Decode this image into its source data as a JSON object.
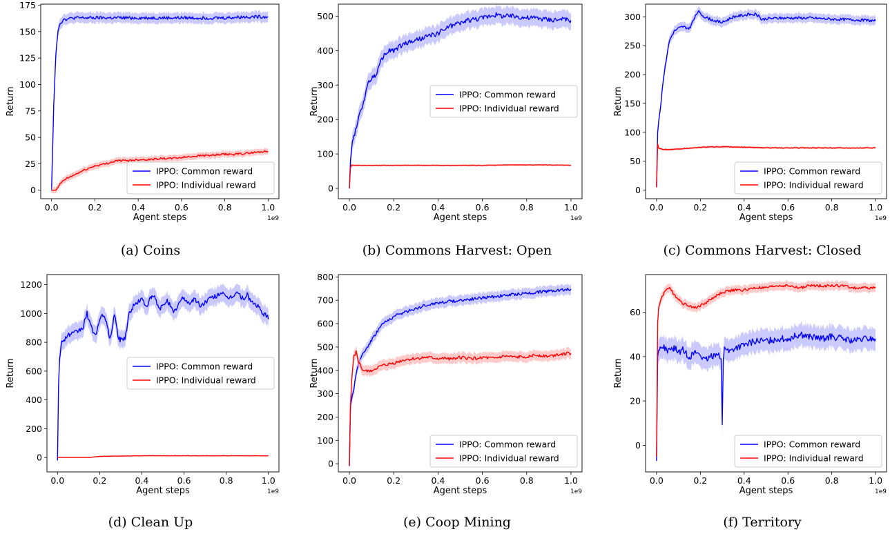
{
  "chart_data": [
    {
      "type": "line",
      "caption": "(a) Coins",
      "xlabel": "Agent steps",
      "ylabel": "Return",
      "x_offset_label": "1e9",
      "xlim": [
        -0.05,
        1.05
      ],
      "ylim": [
        -8,
        176
      ],
      "xticks": [
        0.0,
        0.2,
        0.4,
        0.6,
        0.8,
        1.0
      ],
      "xtick_labels": [
        "0.0",
        "0.2",
        "0.4",
        "0.6",
        "0.8",
        "1.0"
      ],
      "yticks": [
        0,
        25,
        50,
        75,
        100,
        125,
        150,
        175
      ],
      "ytick_labels": [
        "0",
        "25",
        "50",
        "75",
        "100",
        "125",
        "150",
        "175"
      ],
      "legend_loc": "lower-right",
      "series": [
        {
          "name": "IPPO: Common reward",
          "color": "#0000ff",
          "band_color": "#b3b3ff",
          "x": [
            0.0,
            0.01,
            0.02,
            0.03,
            0.04,
            0.05,
            0.06,
            0.08,
            0.1,
            0.2,
            0.3,
            0.4,
            0.5,
            0.6,
            0.7,
            0.8,
            0.9,
            1.0
          ],
          "y": [
            0,
            80,
            130,
            152,
            158,
            160,
            162,
            162,
            163,
            163,
            163,
            163,
            163,
            163,
            163,
            163,
            164,
            164
          ],
          "band": 5
        },
        {
          "name": "IPPO: Individual reward",
          "color": "#ff0000",
          "band_color": "#ffb3b3",
          "x": [
            0.0,
            0.02,
            0.04,
            0.06,
            0.1,
            0.15,
            0.2,
            0.25,
            0.3,
            0.35,
            0.4,
            0.45,
            0.5,
            0.55,
            0.6,
            0.65,
            0.7,
            0.75,
            0.8,
            0.85,
            0.9,
            0.95,
            1.0
          ],
          "y": [
            0,
            0,
            6,
            10,
            14,
            19,
            23,
            25,
            28,
            28,
            29,
            29,
            30,
            30,
            31,
            32,
            33,
            33,
            34,
            34,
            35,
            36,
            37
          ],
          "band": 3
        }
      ]
    },
    {
      "type": "line",
      "caption": "(b) Commons Harvest: Open",
      "xlabel": "Agent steps",
      "ylabel": "Return",
      "x_offset_label": "1e9",
      "xlim": [
        -0.05,
        1.05
      ],
      "ylim": [
        -30,
        535
      ],
      "xticks": [
        0.0,
        0.2,
        0.4,
        0.6,
        0.8,
        1.0
      ],
      "xtick_labels": [
        "0.0",
        "0.2",
        "0.4",
        "0.6",
        "0.8",
        "1.0"
      ],
      "yticks": [
        0,
        100,
        200,
        300,
        400,
        500
      ],
      "ytick_labels": [
        "0",
        "100",
        "200",
        "300",
        "400",
        "500"
      ],
      "legend_loc": "center-right",
      "series": [
        {
          "name": "IPPO: Common reward",
          "color": "#0000ff",
          "band_color": "#b3b3ff",
          "x": [
            0.0,
            0.005,
            0.01,
            0.02,
            0.04,
            0.06,
            0.08,
            0.1,
            0.12,
            0.15,
            0.18,
            0.2,
            0.25,
            0.3,
            0.35,
            0.4,
            0.45,
            0.5,
            0.55,
            0.6,
            0.65,
            0.7,
            0.75,
            0.8,
            0.85,
            0.9,
            0.95,
            1.0
          ],
          "y": [
            0,
            80,
            120,
            150,
            200,
            240,
            300,
            320,
            330,
            380,
            400,
            400,
            420,
            430,
            440,
            450,
            470,
            480,
            490,
            495,
            505,
            500,
            500,
            495,
            495,
            490,
            490,
            488
          ],
          "band": 25
        },
        {
          "name": "IPPO: Individual reward",
          "color": "#ff0000",
          "band_color": "#ffb3b3",
          "x": [
            0.0,
            0.005,
            0.01,
            0.02,
            0.1,
            0.2,
            0.3,
            0.4,
            0.5,
            0.6,
            0.7,
            0.8,
            0.9,
            1.0
          ],
          "y": [
            0,
            60,
            68,
            67,
            67,
            67,
            67,
            67,
            67,
            67,
            68,
            68,
            68,
            67
          ],
          "band": 2
        }
      ]
    },
    {
      "type": "line",
      "caption": "(c) Commons Harvest: Closed",
      "xlabel": "Agent steps",
      "ylabel": "Return",
      "x_offset_label": "1e9",
      "xlim": [
        -0.05,
        1.05
      ],
      "ylim": [
        -15,
        322
      ],
      "xticks": [
        0.0,
        0.2,
        0.4,
        0.6,
        0.8,
        1.0
      ],
      "xtick_labels": [
        "0.0",
        "0.2",
        "0.4",
        "0.6",
        "0.8",
        "1.0"
      ],
      "yticks": [
        0,
        50,
        100,
        150,
        200,
        250,
        300
      ],
      "ytick_labels": [
        "0",
        "50",
        "100",
        "150",
        "200",
        "250",
        "300"
      ],
      "legend_loc": "lower-right",
      "series": [
        {
          "name": "IPPO: Common reward",
          "color": "#0000ff",
          "band_color": "#b3b3ff",
          "x": [
            0.0,
            0.005,
            0.01,
            0.02,
            0.03,
            0.04,
            0.05,
            0.06,
            0.08,
            0.1,
            0.12,
            0.15,
            0.17,
            0.19,
            0.2,
            0.22,
            0.25,
            0.3,
            0.35,
            0.4,
            0.45,
            0.47,
            0.48,
            0.5,
            0.6,
            0.7,
            0.8,
            0.9,
            1.0
          ],
          "y": [
            5,
            100,
            120,
            150,
            190,
            215,
            240,
            260,
            275,
            280,
            283,
            280,
            295,
            310,
            305,
            300,
            295,
            290,
            300,
            303,
            305,
            300,
            295,
            297,
            298,
            298,
            296,
            295,
            293
          ],
          "band": 8
        },
        {
          "name": "IPPO: Individual reward",
          "color": "#ff0000",
          "band_color": "#ffb3b3",
          "x": [
            0.0,
            0.005,
            0.01,
            0.02,
            0.05,
            0.1,
            0.2,
            0.3,
            0.4,
            0.5,
            0.6,
            0.7,
            0.8,
            0.9,
            1.0
          ],
          "y": [
            5,
            80,
            72,
            71,
            70,
            71,
            74,
            75,
            74,
            73,
            73,
            73,
            73,
            73,
            73
          ],
          "band": 2
        }
      ]
    },
    {
      "type": "line",
      "caption": "(d) Clean Up",
      "xlabel": "Agent steps",
      "ylabel": "Return",
      "x_offset_label": "1e9",
      "xlim": [
        -0.05,
        1.05
      ],
      "ylim": [
        -100,
        1270
      ],
      "xticks": [
        0.0,
        0.2,
        0.4,
        0.6,
        0.8,
        1.0
      ],
      "xtick_labels": [
        "0.0",
        "0.2",
        "0.4",
        "0.6",
        "0.8",
        "1.0"
      ],
      "yticks": [
        0,
        200,
        400,
        600,
        800,
        1000,
        1200
      ],
      "ytick_labels": [
        "0",
        "200",
        "400",
        "600",
        "800",
        "1000",
        "1200"
      ],
      "legend_loc": "center-right",
      "series": [
        {
          "name": "IPPO: Common reward",
          "color": "#0000ff",
          "band_color": "#b3b3ff",
          "x": [
            0.0,
            0.005,
            0.01,
            0.02,
            0.03,
            0.05,
            0.08,
            0.1,
            0.12,
            0.14,
            0.16,
            0.18,
            0.2,
            0.22,
            0.24,
            0.25,
            0.27,
            0.29,
            0.3,
            0.32,
            0.34,
            0.36,
            0.38,
            0.4,
            0.42,
            0.44,
            0.46,
            0.48,
            0.5,
            0.52,
            0.55,
            0.58,
            0.6,
            0.62,
            0.65,
            0.68,
            0.7,
            0.72,
            0.75,
            0.78,
            0.8,
            0.83,
            0.85,
            0.88,
            0.9,
            0.92,
            0.95,
            0.97,
            0.99,
            1.0
          ],
          "y": [
            -20,
            500,
            700,
            800,
            820,
            850,
            860,
            880,
            900,
            1000,
            900,
            850,
            950,
            1000,
            880,
            820,
            1000,
            820,
            820,
            830,
            1000,
            1050,
            1080,
            1100,
            1050,
            1100,
            1120,
            1030,
            1050,
            1100,
            1000,
            1080,
            1110,
            1070,
            1100,
            1050,
            1080,
            1100,
            1120,
            1150,
            1100,
            1120,
            1150,
            1100,
            1130,
            1080,
            1050,
            1000,
            990,
            960
          ],
          "band": 60
        },
        {
          "name": "IPPO: Individual reward",
          "color": "#ff0000",
          "band_color": "#ffb3b3",
          "x": [
            0.0,
            0.1,
            0.15,
            0.2,
            0.3,
            0.4,
            0.5,
            0.6,
            0.7,
            0.8,
            0.9,
            1.0
          ],
          "y": [
            0,
            0,
            0,
            8,
            10,
            12,
            12,
            12,
            12,
            12,
            12,
            12
          ],
          "band": 3
        }
      ]
    },
    {
      "type": "line",
      "caption": "(e) Coop Mining",
      "xlabel": "Agent steps",
      "ylabel": "Return",
      "x_offset_label": "1e9",
      "xlim": [
        -0.05,
        1.05
      ],
      "ylim": [
        -35,
        810
      ],
      "xticks": [
        0.0,
        0.2,
        0.4,
        0.6,
        0.8,
        1.0
      ],
      "xtick_labels": [
        "0.0",
        "0.2",
        "0.4",
        "0.6",
        "0.8",
        "1.0"
      ],
      "yticks": [
        0,
        100,
        200,
        300,
        400,
        500,
        600,
        700,
        800
      ],
      "ytick_labels": [
        "0",
        "100",
        "200",
        "300",
        "400",
        "500",
        "600",
        "700",
        "800"
      ],
      "legend_loc": "lower-right",
      "series": [
        {
          "name": "IPPO: Common reward",
          "color": "#0000ff",
          "band_color": "#b3b3ff",
          "x": [
            0.0,
            0.005,
            0.01,
            0.02,
            0.03,
            0.04,
            0.05,
            0.06,
            0.08,
            0.1,
            0.12,
            0.15,
            0.2,
            0.25,
            0.3,
            0.35,
            0.4,
            0.45,
            0.5,
            0.55,
            0.6,
            0.65,
            0.7,
            0.75,
            0.8,
            0.85,
            0.9,
            0.95,
            1.0
          ],
          "y": [
            -10,
            250,
            280,
            320,
            380,
            420,
            450,
            470,
            500,
            530,
            560,
            600,
            630,
            650,
            665,
            680,
            690,
            695,
            700,
            705,
            710,
            715,
            720,
            725,
            730,
            735,
            740,
            745,
            748
          ],
          "band": 22
        },
        {
          "name": "IPPO: Individual reward",
          "color": "#ff0000",
          "band_color": "#ffb3b3",
          "x": [
            0.0,
            0.005,
            0.01,
            0.02,
            0.03,
            0.04,
            0.05,
            0.06,
            0.08,
            0.1,
            0.15,
            0.2,
            0.25,
            0.3,
            0.35,
            0.4,
            0.45,
            0.5,
            0.55,
            0.6,
            0.65,
            0.7,
            0.75,
            0.8,
            0.85,
            0.9,
            0.95,
            1.0
          ],
          "y": [
            -10,
            250,
            350,
            460,
            480,
            440,
            420,
            400,
            395,
            400,
            420,
            430,
            445,
            450,
            455,
            450,
            450,
            455,
            450,
            455,
            450,
            460,
            455,
            460,
            465,
            460,
            470,
            472
          ],
          "band": 22
        }
      ]
    },
    {
      "type": "line",
      "caption": "(f) Territory",
      "xlabel": "Agent steps",
      "ylabel": "Return",
      "x_offset_label": "1e9",
      "xlim": [
        -0.05,
        1.05
      ],
      "ylim": [
        -12,
        77
      ],
      "xticks": [
        0.0,
        0.2,
        0.4,
        0.6,
        0.8,
        1.0
      ],
      "xtick_labels": [
        "0.0",
        "0.2",
        "0.4",
        "0.6",
        "0.8",
        "1.0"
      ],
      "yticks": [
        0,
        20,
        40,
        60
      ],
      "ytick_labels": [
        "0",
        "20",
        "40",
        "60"
      ],
      "legend_loc": "lower-right",
      "series": [
        {
          "name": "IPPO: Common reward",
          "color": "#0000ff",
          "band_color": "#b3b3ff",
          "x": [
            0.0,
            0.005,
            0.01,
            0.02,
            0.03,
            0.05,
            0.08,
            0.1,
            0.12,
            0.15,
            0.18,
            0.2,
            0.22,
            0.25,
            0.28,
            0.295,
            0.3,
            0.305,
            0.31,
            0.33,
            0.36,
            0.4,
            0.45,
            0.5,
            0.55,
            0.6,
            0.65,
            0.7,
            0.75,
            0.8,
            0.85,
            0.9,
            0.95,
            1.0
          ],
          "y": [
            -7,
            40,
            44,
            43,
            45,
            42,
            44,
            42,
            43,
            40,
            42,
            41,
            38,
            40,
            42,
            38,
            9,
            38,
            45,
            42,
            44,
            45,
            47,
            47,
            48,
            48,
            50,
            49,
            48,
            49,
            48,
            47,
            48,
            48
          ],
          "band": 5
        },
        {
          "name": "IPPO: Individual reward",
          "color": "#ff0000",
          "band_color": "#ffb3b3",
          "x": [
            0.0,
            0.005,
            0.01,
            0.02,
            0.03,
            0.05,
            0.06,
            0.08,
            0.1,
            0.12,
            0.15,
            0.18,
            0.2,
            0.22,
            0.25,
            0.3,
            0.35,
            0.4,
            0.45,
            0.5,
            0.55,
            0.6,
            0.65,
            0.7,
            0.75,
            0.8,
            0.85,
            0.9,
            0.95,
            1.0
          ],
          "y": [
            -5,
            55,
            62,
            66,
            68,
            71,
            71,
            68,
            66,
            64,
            63,
            62,
            63,
            64,
            66,
            69,
            70,
            70,
            71,
            71,
            72,
            72,
            71,
            72,
            72,
            72,
            72,
            71,
            71,
            71
          ],
          "band": 2
        }
      ]
    }
  ]
}
